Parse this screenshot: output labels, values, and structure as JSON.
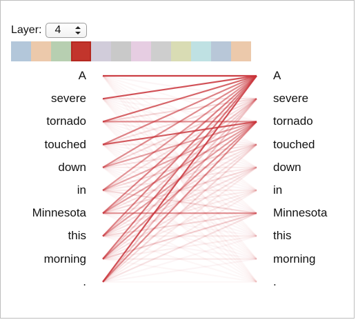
{
  "layer_control": {
    "label": "Layer:",
    "selected": "4"
  },
  "swatch_colors": [
    "#b3c7da",
    "#ecc9ab",
    "#b7cfb1",
    "#c2352c",
    "#d1ccda",
    "#c9c9c9",
    "#e6cde2",
    "#cecece",
    "#d9dcb4",
    "#bfe1e3",
    "#b8c7d8",
    "#ecc9ab"
  ],
  "active_swatch_index": 3,
  "attention_color": "#c9343a",
  "left_tokens": [
    "A",
    "severe",
    "tornado",
    "touched",
    "down",
    "in",
    "Minnesota",
    "this",
    "morning",
    "."
  ],
  "right_tokens": [
    "A",
    "severe",
    "tornado",
    "touched",
    "down",
    "in",
    "Minnesota",
    "this",
    "morning",
    "."
  ],
  "attention_weights": [
    [
      1.0,
      0.05,
      0.03,
      0.02,
      0.02,
      0.01,
      0.01,
      0.01,
      0.01,
      0.01
    ],
    [
      0.9,
      0.15,
      0.05,
      0.05,
      0.03,
      0.02,
      0.03,
      0.02,
      0.02,
      0.01
    ],
    [
      0.8,
      0.2,
      0.6,
      0.07,
      0.05,
      0.03,
      0.05,
      0.03,
      0.02,
      0.01
    ],
    [
      0.65,
      0.15,
      0.85,
      0.1,
      0.05,
      0.05,
      0.05,
      0.03,
      0.03,
      0.01
    ],
    [
      0.6,
      0.2,
      0.5,
      0.15,
      0.1,
      0.05,
      0.05,
      0.05,
      0.03,
      0.02
    ],
    [
      0.55,
      0.15,
      0.45,
      0.2,
      0.12,
      0.1,
      0.2,
      0.05,
      0.03,
      0.02
    ],
    [
      0.65,
      0.3,
      0.5,
      0.15,
      0.2,
      0.1,
      0.6,
      0.05,
      0.05,
      0.02
    ],
    [
      0.65,
      0.25,
      0.5,
      0.15,
      0.15,
      0.1,
      0.2,
      0.1,
      0.05,
      0.03
    ],
    [
      0.7,
      0.25,
      0.55,
      0.15,
      0.15,
      0.1,
      0.25,
      0.08,
      0.1,
      0.04
    ],
    [
      0.9,
      0.3,
      0.6,
      0.2,
      0.1,
      0.08,
      0.15,
      0.05,
      0.05,
      0.03
    ]
  ]
}
